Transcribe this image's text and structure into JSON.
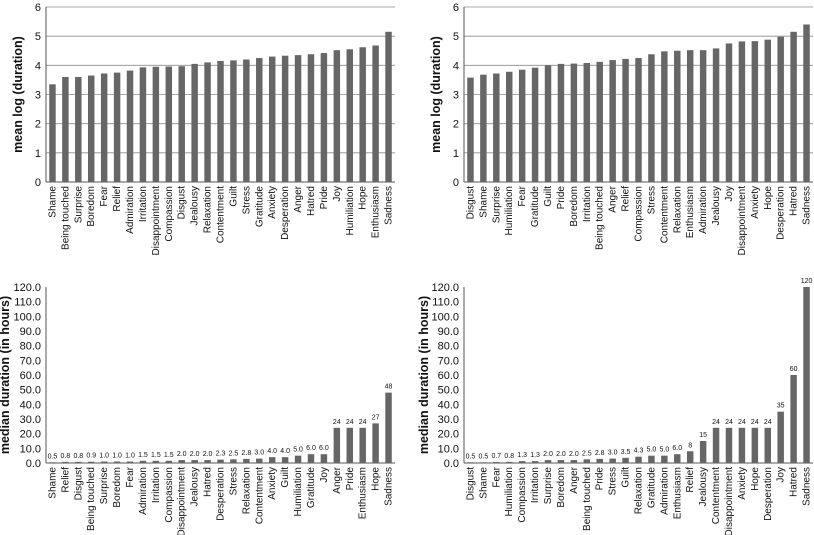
{
  "chart_data": [
    {
      "type": "bar",
      "ylabel": "mean log (duration)",
      "ylim": [
        0,
        6
      ],
      "yticks": [
        "0",
        "1",
        "2",
        "3",
        "4",
        "5",
        "6"
      ],
      "grid": true,
      "show_values": false,
      "categories": [
        "Shame",
        "Being touched",
        "Surprise",
        "Boredom",
        "Fear",
        "Relief",
        "Admiration",
        "Irritation",
        "Disappointment",
        "Compassion",
        "Disgust",
        "Jealousy",
        "Relaxation",
        "Contentment",
        "Guilt",
        "Stress",
        "Gratitude",
        "Anxiety",
        "Desperation",
        "Anger",
        "Hatred",
        "Pride",
        "Joy",
        "Humiliation",
        "Hope",
        "Enthusiasm",
        "Sadness"
      ],
      "values": [
        3.35,
        3.6,
        3.6,
        3.65,
        3.72,
        3.75,
        3.82,
        3.93,
        3.95,
        3.96,
        3.97,
        4.05,
        4.1,
        4.15,
        4.17,
        4.2,
        4.25,
        4.3,
        4.33,
        4.35,
        4.38,
        4.42,
        4.52,
        4.55,
        4.62,
        4.68,
        5.15
      ]
    },
    {
      "type": "bar",
      "ylabel": "mean log (duration)",
      "ylim": [
        0,
        6
      ],
      "yticks": [
        "0",
        "1",
        "2",
        "3",
        "4",
        "5",
        "6"
      ],
      "grid": true,
      "show_values": false,
      "categories": [
        "Disgust",
        "Shame",
        "Surprise",
        "Humiliation",
        "Fear",
        "Gratitude",
        "Guilt",
        "Pride",
        "Boredom",
        "Irritation",
        "Being touched",
        "Anger",
        "Relief",
        "Compassion",
        "Stress",
        "Contentment",
        "Relaxation",
        "Enthusiasm",
        "Admiration",
        "Jealousy",
        "Joy",
        "Disappointment",
        "Anxiety",
        "Hope",
        "Desperation",
        "Hatred",
        "Sadness"
      ],
      "values": [
        3.58,
        3.68,
        3.72,
        3.78,
        3.85,
        3.92,
        4.0,
        4.05,
        4.06,
        4.08,
        4.12,
        4.18,
        4.22,
        4.25,
        4.38,
        4.48,
        4.5,
        4.52,
        4.52,
        4.58,
        4.75,
        4.82,
        4.83,
        4.88,
        4.98,
        5.15,
        5.4
      ]
    },
    {
      "type": "bar",
      "ylabel": "median duration (in hours)",
      "ylim": [
        0,
        120
      ],
      "yticks": [
        "0.0",
        "10.0",
        "20.0",
        "30.0",
        "40.0",
        "50.0",
        "60.0",
        "70.0",
        "80.0",
        "90.0",
        "100.0",
        "110.0",
        "120.0"
      ],
      "grid": false,
      "show_values": true,
      "categories": [
        "Shame",
        "Relief",
        "Disgust",
        "Being touched",
        "Surprise",
        "Boredom",
        "Fear",
        "Admiration",
        "Irritation",
        "Compassion",
        "Disappointment",
        "Jealousy",
        "Hatred",
        "Desperation",
        "Stress",
        "Relaxation",
        "Contentment",
        "Anxiety",
        "Guilt",
        "Humiliation",
        "Gratitude",
        "Joy",
        "Anger",
        "Pride",
        "Enthusiasm",
        "Hope",
        "Sadness"
      ],
      "values": [
        0.5,
        0.8,
        0.8,
        0.9,
        1.0,
        1.0,
        1.0,
        1.5,
        1.5,
        1.5,
        2.0,
        2.0,
        2.0,
        2.3,
        2.5,
        2.8,
        3.0,
        4.0,
        4.0,
        5.0,
        6.0,
        6.0,
        24,
        24,
        24,
        27,
        48
      ],
      "value_labels": [
        "0.5",
        "0.8",
        "0.8",
        "0.9",
        "1.0",
        "1.0",
        "1.0",
        "1.5",
        "1.5",
        "1.5",
        "2.0",
        "2.0",
        "2.0",
        "2.3",
        "2.5",
        "2.8",
        "3.0",
        "4.0",
        "4.0",
        "5.0",
        "6.0",
        "6.0",
        "24",
        "24",
        "24",
        "27",
        "48"
      ]
    },
    {
      "type": "bar",
      "ylabel": "median duration (in hours)",
      "ylim": [
        0,
        120
      ],
      "yticks": [
        "0.0",
        "10.0",
        "20.0",
        "30.0",
        "40.0",
        "50.0",
        "60.0",
        "70.0",
        "80.0",
        "90.0",
        "100.0",
        "110.0",
        "120.0"
      ],
      "grid": false,
      "show_values": true,
      "categories": [
        "Disgust",
        "Shame",
        "Fear",
        "Humiliation",
        "Compassion",
        "Irritation",
        "Surprise",
        "Boredom",
        "Anger",
        "Being touched",
        "Pride",
        "Stress",
        "Guilt",
        "Relaxation",
        "Gratitude",
        "Admiration",
        "Enthusiasm",
        "Relief",
        "Jealousy",
        "Contentment",
        "Disappointment",
        "Anxiety",
        "Hope",
        "Desperation",
        "Joy",
        "Hatred",
        "Sadness"
      ],
      "values": [
        0.5,
        0.5,
        0.7,
        0.8,
        1.3,
        1.3,
        2.0,
        2.0,
        2.0,
        2.5,
        2.8,
        3.0,
        3.5,
        4.3,
        5.0,
        5.0,
        6.0,
        8,
        15,
        24,
        24,
        24,
        24,
        24,
        35,
        60,
        120
      ],
      "value_labels": [
        "0.5",
        "0.5",
        "0.7",
        "0.8",
        "1.3",
        "1.3",
        "2.0",
        "2.0",
        "2.0",
        "2.5",
        "2.8",
        "3.0",
        "3.5",
        "4.3",
        "5.0",
        "5.0",
        "6.0",
        "8",
        "15",
        "24",
        "24",
        "24",
        "24",
        "24",
        "35",
        "60",
        "120"
      ]
    }
  ]
}
